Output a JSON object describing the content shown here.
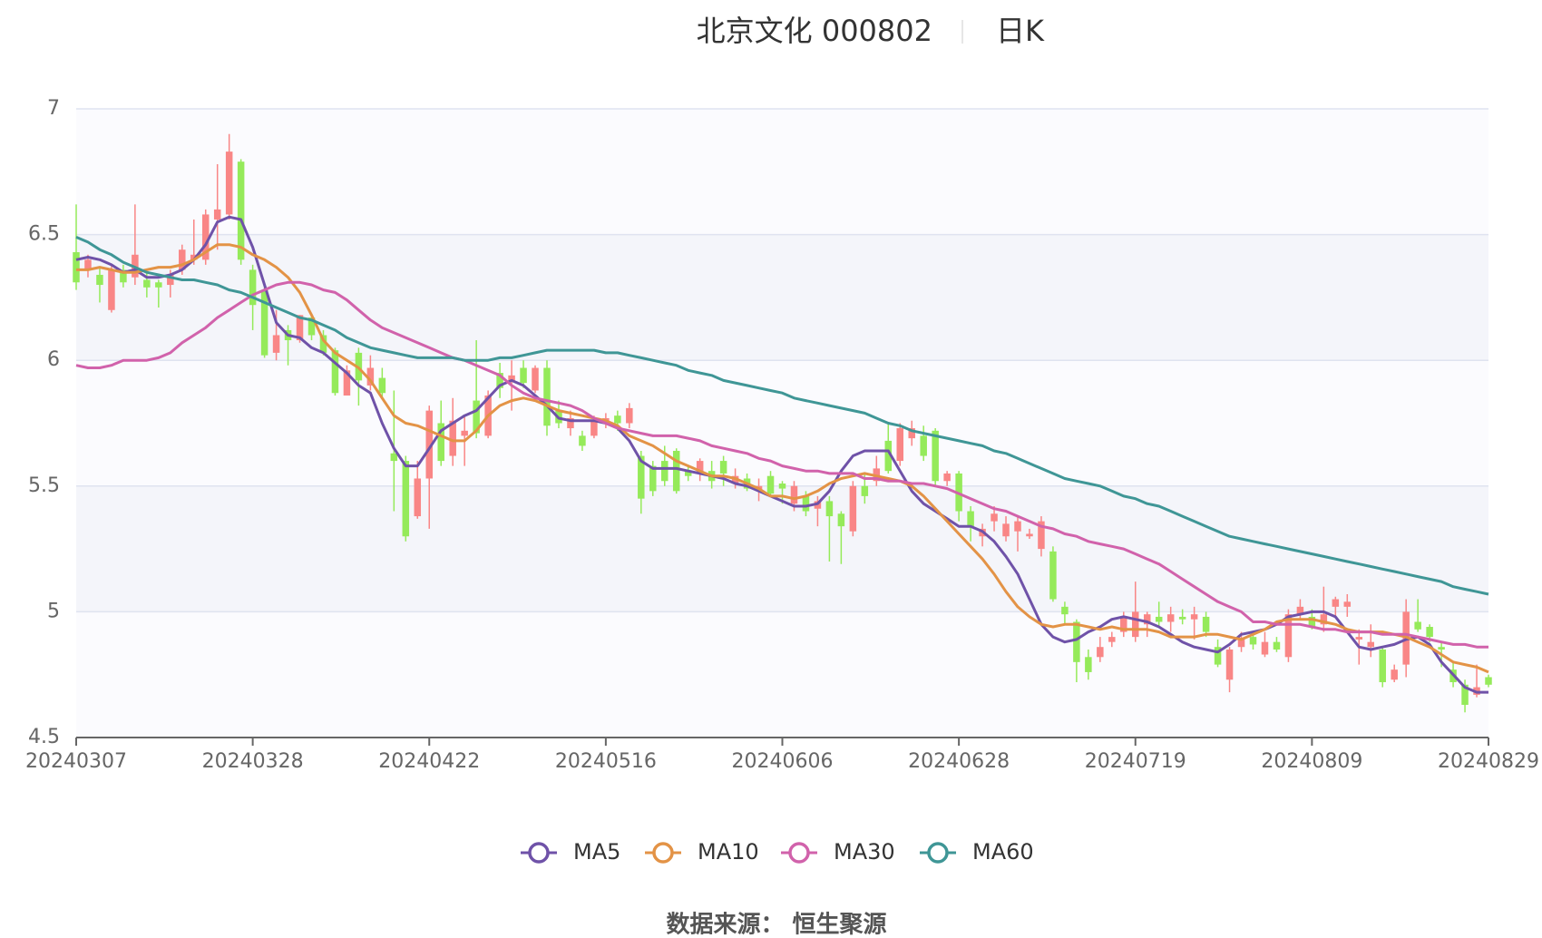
{
  "chart_data": {
    "type": "candlestick",
    "title": "北京文化 000802",
    "subtitle": "日K",
    "source": "数据来源： 恒生聚源",
    "categories": [
      "20240307",
      null,
      null,
      null,
      null,
      null,
      null,
      null,
      null,
      null,
      null,
      null,
      null,
      null,
      null,
      "20240328",
      null,
      null,
      null,
      null,
      null,
      null,
      null,
      null,
      null,
      null,
      null,
      null,
      null,
      null,
      "20240422",
      null,
      null,
      null,
      null,
      null,
      null,
      null,
      null,
      null,
      null,
      null,
      null,
      null,
      null,
      "20240516",
      null,
      null,
      null,
      null,
      null,
      null,
      null,
      null,
      null,
      null,
      null,
      null,
      null,
      null,
      "20240606",
      null,
      null,
      null,
      null,
      null,
      null,
      null,
      null,
      null,
      null,
      null,
      null,
      null,
      null,
      "20240628",
      null,
      null,
      null,
      null,
      null,
      null,
      null,
      null,
      null,
      null,
      null,
      null,
      null,
      null,
      "20240719",
      null,
      null,
      null,
      null,
      null,
      null,
      null,
      null,
      null,
      null,
      null,
      null,
      null,
      null,
      "20240809",
      null,
      null,
      null,
      null,
      null,
      null,
      null,
      null,
      null,
      null,
      null,
      null,
      null,
      null,
      "20240829"
    ],
    "candles": {
      "up_color": "#f98686",
      "down_color": "#95ea5a",
      "open": [
        6.43,
        6.36,
        6.34,
        6.2,
        6.36,
        6.33,
        6.32,
        6.31,
        6.3,
        6.36,
        6.4,
        6.4,
        6.56,
        6.58,
        6.79,
        6.36,
        6.28,
        6.03,
        6.12,
        6.08,
        6.17,
        6.1,
        6.04,
        5.86,
        6.03,
        5.9,
        5.93,
        5.63,
        5.6,
        5.38,
        5.53,
        5.75,
        5.62,
        5.7,
        5.84,
        5.7,
        5.95,
        5.92,
        5.97,
        5.88,
        5.97,
        5.8,
        5.73,
        5.7,
        5.7,
        5.75,
        5.78,
        5.75,
        5.62,
        5.58,
        5.6,
        5.64,
        5.56,
        5.55,
        5.56,
        5.6,
        5.51,
        5.53,
        5.48,
        5.54,
        5.51,
        5.43,
        5.46,
        5.41,
        5.44,
        5.39,
        5.32,
        5.5,
        5.52,
        5.68,
        5.6,
        5.69,
        5.7,
        5.72,
        5.52,
        5.55,
        5.4,
        5.3,
        5.36,
        5.3,
        5.32,
        5.3,
        5.25,
        5.24,
        5.02,
        4.96,
        4.82,
        4.82,
        4.88,
        4.92,
        4.9,
        4.95,
        4.98,
        4.96,
        4.98,
        4.97,
        4.98,
        4.86,
        4.73,
        4.86,
        4.9,
        4.83,
        4.88,
        4.82,
        4.99,
        4.98,
        4.95,
        5.02,
        5.02,
        4.89,
        4.86,
        4.85,
        4.73,
        4.79,
        4.96,
        4.94,
        4.86,
        4.77,
        4.71,
        4.67,
        4.74
      ],
      "close": [
        6.31,
        6.4,
        6.3,
        6.36,
        6.31,
        6.42,
        6.29,
        6.29,
        6.34,
        6.44,
        6.42,
        6.58,
        6.6,
        6.83,
        6.4,
        6.22,
        6.02,
        6.1,
        6.08,
        6.18,
        6.1,
        6.03,
        5.87,
        5.96,
        5.92,
        5.97,
        5.87,
        5.6,
        5.3,
        5.53,
        5.8,
        5.6,
        5.76,
        5.72,
        5.71,
        5.86,
        5.89,
        5.94,
        5.91,
        5.97,
        5.74,
        5.75,
        5.77,
        5.66,
        5.76,
        5.77,
        5.75,
        5.81,
        5.45,
        5.48,
        5.52,
        5.48,
        5.54,
        5.6,
        5.52,
        5.55,
        5.54,
        5.49,
        5.5,
        5.47,
        5.49,
        5.5,
        5.4,
        5.44,
        5.38,
        5.34,
        5.5,
        5.46,
        5.57,
        5.56,
        5.73,
        5.73,
        5.62,
        5.52,
        5.55,
        5.4,
        5.34,
        5.33,
        5.39,
        5.35,
        5.36,
        5.31,
        5.36,
        5.05,
        4.99,
        4.8,
        4.76,
        4.86,
        4.9,
        4.98,
        5.0,
        4.99,
        4.96,
        4.99,
        4.97,
        4.99,
        4.92,
        4.79,
        4.85,
        4.89,
        4.87,
        4.88,
        4.85,
        4.99,
        5.02,
        4.94,
        4.99,
        5.05,
        5.04,
        4.9,
        4.88,
        4.72,
        4.77,
        5.0,
        4.93,
        4.9,
        4.85,
        4.72,
        4.63,
        4.7,
        4.71
      ],
      "low": [
        6.28,
        6.33,
        6.23,
        6.19,
        6.29,
        6.3,
        6.25,
        6.21,
        6.25,
        6.34,
        6.38,
        6.38,
        6.44,
        6.56,
        6.38,
        6.12,
        6.01,
        6.0,
        5.98,
        6.07,
        6.08,
        6.02,
        5.86,
        5.86,
        5.82,
        5.88,
        5.85,
        5.4,
        5.28,
        5.37,
        5.33,
        5.58,
        5.58,
        5.58,
        5.69,
        5.69,
        5.85,
        5.8,
        5.89,
        5.87,
        5.7,
        5.73,
        5.7,
        5.64,
        5.69,
        5.73,
        5.72,
        5.73,
        5.39,
        5.46,
        5.5,
        5.47,
        5.52,
        5.52,
        5.49,
        5.5,
        5.49,
        5.48,
        5.44,
        5.46,
        5.43,
        5.4,
        5.38,
        5.34,
        5.2,
        5.19,
        5.3,
        5.43,
        5.5,
        5.55,
        5.58,
        5.66,
        5.6,
        5.5,
        5.5,
        5.36,
        5.28,
        5.26,
        5.32,
        5.28,
        5.24,
        5.29,
        5.22,
        5.04,
        4.95,
        4.72,
        4.73,
        4.8,
        4.86,
        4.9,
        4.88,
        4.9,
        4.94,
        4.92,
        4.95,
        4.89,
        4.9,
        4.78,
        4.68,
        4.84,
        4.85,
        4.82,
        4.84,
        4.8,
        4.97,
        4.93,
        4.92,
        4.98,
        4.98,
        4.79,
        4.82,
        4.7,
        4.72,
        4.74,
        4.92,
        4.88,
        4.78,
        4.7,
        4.6,
        4.66,
        4.7
      ],
      "high": [
        6.62,
        6.42,
        6.37,
        6.38,
        6.38,
        6.62,
        6.35,
        6.32,
        6.36,
        6.46,
        6.56,
        6.6,
        6.78,
        6.9,
        6.8,
        6.38,
        6.3,
        6.2,
        6.14,
        6.18,
        6.18,
        6.12,
        6.05,
        5.98,
        6.05,
        6.02,
        5.97,
        5.88,
        5.62,
        5.6,
        5.82,
        5.84,
        5.85,
        5.78,
        6.08,
        5.88,
        5.99,
        6.0,
        6.0,
        5.98,
        6.0,
        5.84,
        5.8,
        5.72,
        5.78,
        5.79,
        5.8,
        5.83,
        5.64,
        5.6,
        5.66,
        5.65,
        5.58,
        5.61,
        5.6,
        5.62,
        5.57,
        5.55,
        5.53,
        5.56,
        5.52,
        5.52,
        5.48,
        5.46,
        5.46,
        5.4,
        5.52,
        5.55,
        5.62,
        5.75,
        5.75,
        5.76,
        5.74,
        5.73,
        5.56,
        5.56,
        5.42,
        5.35,
        5.42,
        5.38,
        5.38,
        5.33,
        5.38,
        5.26,
        5.04,
        4.97,
        4.85,
        4.9,
        4.92,
        5.0,
        5.12,
        5.0,
        5.04,
        5.02,
        5.01,
        5.02,
        5.0,
        4.89,
        4.86,
        4.92,
        4.92,
        4.92,
        4.9,
        5.01,
        5.05,
        5.01,
        5.1,
        5.06,
        5.07,
        4.93,
        4.95,
        4.86,
        4.79,
        5.05,
        5.05,
        4.95,
        4.88,
        4.8,
        4.73,
        4.79,
        4.75
      ]
    },
    "series": [
      {
        "name": "MA5",
        "color": "#6f52a8",
        "values": [
          6.4,
          6.41,
          6.4,
          6.38,
          6.35,
          6.36,
          6.33,
          6.33,
          6.34,
          6.36,
          6.4,
          6.46,
          6.55,
          6.57,
          6.56,
          6.45,
          6.3,
          6.15,
          6.1,
          6.09,
          6.05,
          6.03,
          5.99,
          5.95,
          5.9,
          5.87,
          5.75,
          5.65,
          5.58,
          5.58,
          5.65,
          5.72,
          5.75,
          5.78,
          5.8,
          5.85,
          5.9,
          5.92,
          5.9,
          5.86,
          5.82,
          5.77,
          5.76,
          5.76,
          5.76,
          5.75,
          5.73,
          5.68,
          5.6,
          5.57,
          5.57,
          5.57,
          5.56,
          5.55,
          5.54,
          5.53,
          5.51,
          5.5,
          5.48,
          5.46,
          5.44,
          5.42,
          5.42,
          5.43,
          5.48,
          5.56,
          5.62,
          5.64,
          5.64,
          5.64,
          5.56,
          5.48,
          5.43,
          5.4,
          5.37,
          5.34,
          5.34,
          5.32,
          5.28,
          5.22,
          5.15,
          5.05,
          4.95,
          4.9,
          4.88,
          4.89,
          4.92,
          4.94,
          4.97,
          4.98,
          4.97,
          4.96,
          4.94,
          4.91,
          4.88,
          4.86,
          4.85,
          4.84,
          4.87,
          4.91,
          4.92,
          4.93,
          4.95,
          4.98,
          4.99,
          5.0,
          5.0,
          4.98,
          4.92,
          4.86,
          4.85,
          4.86,
          4.87,
          4.89,
          4.9,
          4.87,
          4.8,
          4.75,
          4.7,
          4.68,
          4.68
        ]
      },
      {
        "name": "MA10",
        "color": "#e39346",
        "values": [
          6.36,
          6.36,
          6.37,
          6.36,
          6.35,
          6.35,
          6.36,
          6.37,
          6.37,
          6.38,
          6.4,
          6.43,
          6.46,
          6.46,
          6.45,
          6.42,
          6.4,
          6.37,
          6.33,
          6.27,
          6.18,
          6.08,
          6.03,
          6.0,
          5.97,
          5.92,
          5.85,
          5.78,
          5.75,
          5.74,
          5.72,
          5.7,
          5.68,
          5.68,
          5.72,
          5.78,
          5.82,
          5.84,
          5.85,
          5.84,
          5.82,
          5.8,
          5.79,
          5.78,
          5.77,
          5.76,
          5.74,
          5.7,
          5.68,
          5.66,
          5.63,
          5.6,
          5.58,
          5.56,
          5.54,
          5.54,
          5.53,
          5.51,
          5.49,
          5.46,
          5.46,
          5.45,
          5.46,
          5.48,
          5.51,
          5.53,
          5.54,
          5.55,
          5.54,
          5.53,
          5.52,
          5.5,
          5.46,
          5.41,
          5.36,
          5.31,
          5.26,
          5.21,
          5.15,
          5.08,
          5.02,
          4.98,
          4.95,
          4.94,
          4.95,
          4.95,
          4.94,
          4.93,
          4.94,
          4.93,
          4.93,
          4.93,
          4.92,
          4.9,
          4.9,
          4.9,
          4.91,
          4.91,
          4.9,
          4.89,
          4.91,
          4.93,
          4.96,
          4.97,
          4.97,
          4.97,
          4.96,
          4.95,
          4.93,
          4.92,
          4.92,
          4.92,
          4.91,
          4.9,
          4.88,
          4.86,
          4.83,
          4.8,
          4.79,
          4.78,
          4.76
        ]
      },
      {
        "name": "MA30",
        "color": "#d162ab",
        "values": [
          5.98,
          5.97,
          5.97,
          5.98,
          6.0,
          6.0,
          6.0,
          6.01,
          6.03,
          6.07,
          6.1,
          6.13,
          6.17,
          6.2,
          6.23,
          6.26,
          6.28,
          6.3,
          6.31,
          6.31,
          6.3,
          6.28,
          6.27,
          6.24,
          6.2,
          6.16,
          6.13,
          6.11,
          6.09,
          6.07,
          6.05,
          6.03,
          6.01,
          6.0,
          5.98,
          5.96,
          5.94,
          5.9,
          5.87,
          5.85,
          5.84,
          5.83,
          5.82,
          5.8,
          5.77,
          5.75,
          5.73,
          5.72,
          5.71,
          5.7,
          5.7,
          5.7,
          5.69,
          5.68,
          5.66,
          5.65,
          5.64,
          5.63,
          5.61,
          5.6,
          5.58,
          5.57,
          5.56,
          5.56,
          5.55,
          5.55,
          5.55,
          5.53,
          5.53,
          5.52,
          5.52,
          5.51,
          5.51,
          5.5,
          5.49,
          5.47,
          5.45,
          5.43,
          5.41,
          5.4,
          5.38,
          5.36,
          5.34,
          5.33,
          5.31,
          5.3,
          5.28,
          5.27,
          5.26,
          5.25,
          5.23,
          5.21,
          5.19,
          5.16,
          5.13,
          5.1,
          5.07,
          5.04,
          5.02,
          5.0,
          4.96,
          4.96,
          4.95,
          4.95,
          4.95,
          4.94,
          4.93,
          4.93,
          4.92,
          4.92,
          4.92,
          4.91,
          4.91,
          4.91,
          4.9,
          4.89,
          4.88,
          4.87,
          4.87,
          4.86,
          4.86
        ]
      },
      {
        "name": "MA60",
        "color": "#3f9696",
        "values": [
          6.49,
          6.47,
          6.44,
          6.42,
          6.39,
          6.37,
          6.35,
          6.34,
          6.33,
          6.32,
          6.32,
          6.31,
          6.3,
          6.28,
          6.27,
          6.25,
          6.23,
          6.21,
          6.19,
          6.17,
          6.16,
          6.14,
          6.12,
          6.09,
          6.07,
          6.05,
          6.04,
          6.03,
          6.02,
          6.01,
          6.01,
          6.01,
          6.01,
          6.0,
          6.0,
          6.0,
          6.01,
          6.01,
          6.02,
          6.03,
          6.04,
          6.04,
          6.04,
          6.04,
          6.04,
          6.03,
          6.03,
          6.02,
          6.01,
          6.0,
          5.99,
          5.98,
          5.96,
          5.95,
          5.94,
          5.92,
          5.91,
          5.9,
          5.89,
          5.88,
          5.87,
          5.85,
          5.84,
          5.83,
          5.82,
          5.81,
          5.8,
          5.79,
          5.77,
          5.75,
          5.74,
          5.72,
          5.71,
          5.7,
          5.69,
          5.68,
          5.67,
          5.66,
          5.64,
          5.63,
          5.61,
          5.59,
          5.57,
          5.55,
          5.53,
          5.52,
          5.51,
          5.5,
          5.48,
          5.46,
          5.45,
          5.43,
          5.42,
          5.4,
          5.38,
          5.36,
          5.34,
          5.32,
          5.3,
          5.29,
          5.28,
          5.27,
          5.26,
          5.25,
          5.24,
          5.23,
          5.22,
          5.21,
          5.2,
          5.19,
          5.18,
          5.17,
          5.16,
          5.15,
          5.14,
          5.13,
          5.12,
          5.1,
          5.09,
          5.08,
          5.07
        ]
      }
    ],
    "ylim": [
      4.5,
      7
    ],
    "yticks": [
      4.5,
      5,
      5.5,
      6,
      6.5,
      7
    ],
    "grid": true
  }
}
